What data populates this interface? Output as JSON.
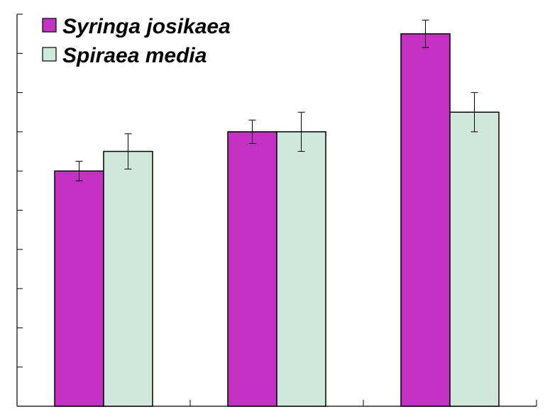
{
  "chart_data": {
    "type": "bar",
    "categories": [
      "",
      "",
      ""
    ],
    "series": [
      {
        "name": "Syringa josikaea",
        "color": "#c432c4",
        "values": [
          6.0,
          7.0,
          9.5
        ],
        "errors": [
          0.25,
          0.3,
          0.35
        ]
      },
      {
        "name": "Spiraea media",
        "color": "#cfe8dc",
        "values": [
          6.5,
          7.0,
          7.5
        ],
        "errors": [
          0.45,
          0.5,
          0.5
        ]
      }
    ],
    "ylim": [
      0,
      10
    ],
    "y_ticks": 10,
    "grid": false,
    "tick_labels_shown": false,
    "legend_position": "top-left",
    "title": "",
    "xlabel": "",
    "ylabel": ""
  }
}
